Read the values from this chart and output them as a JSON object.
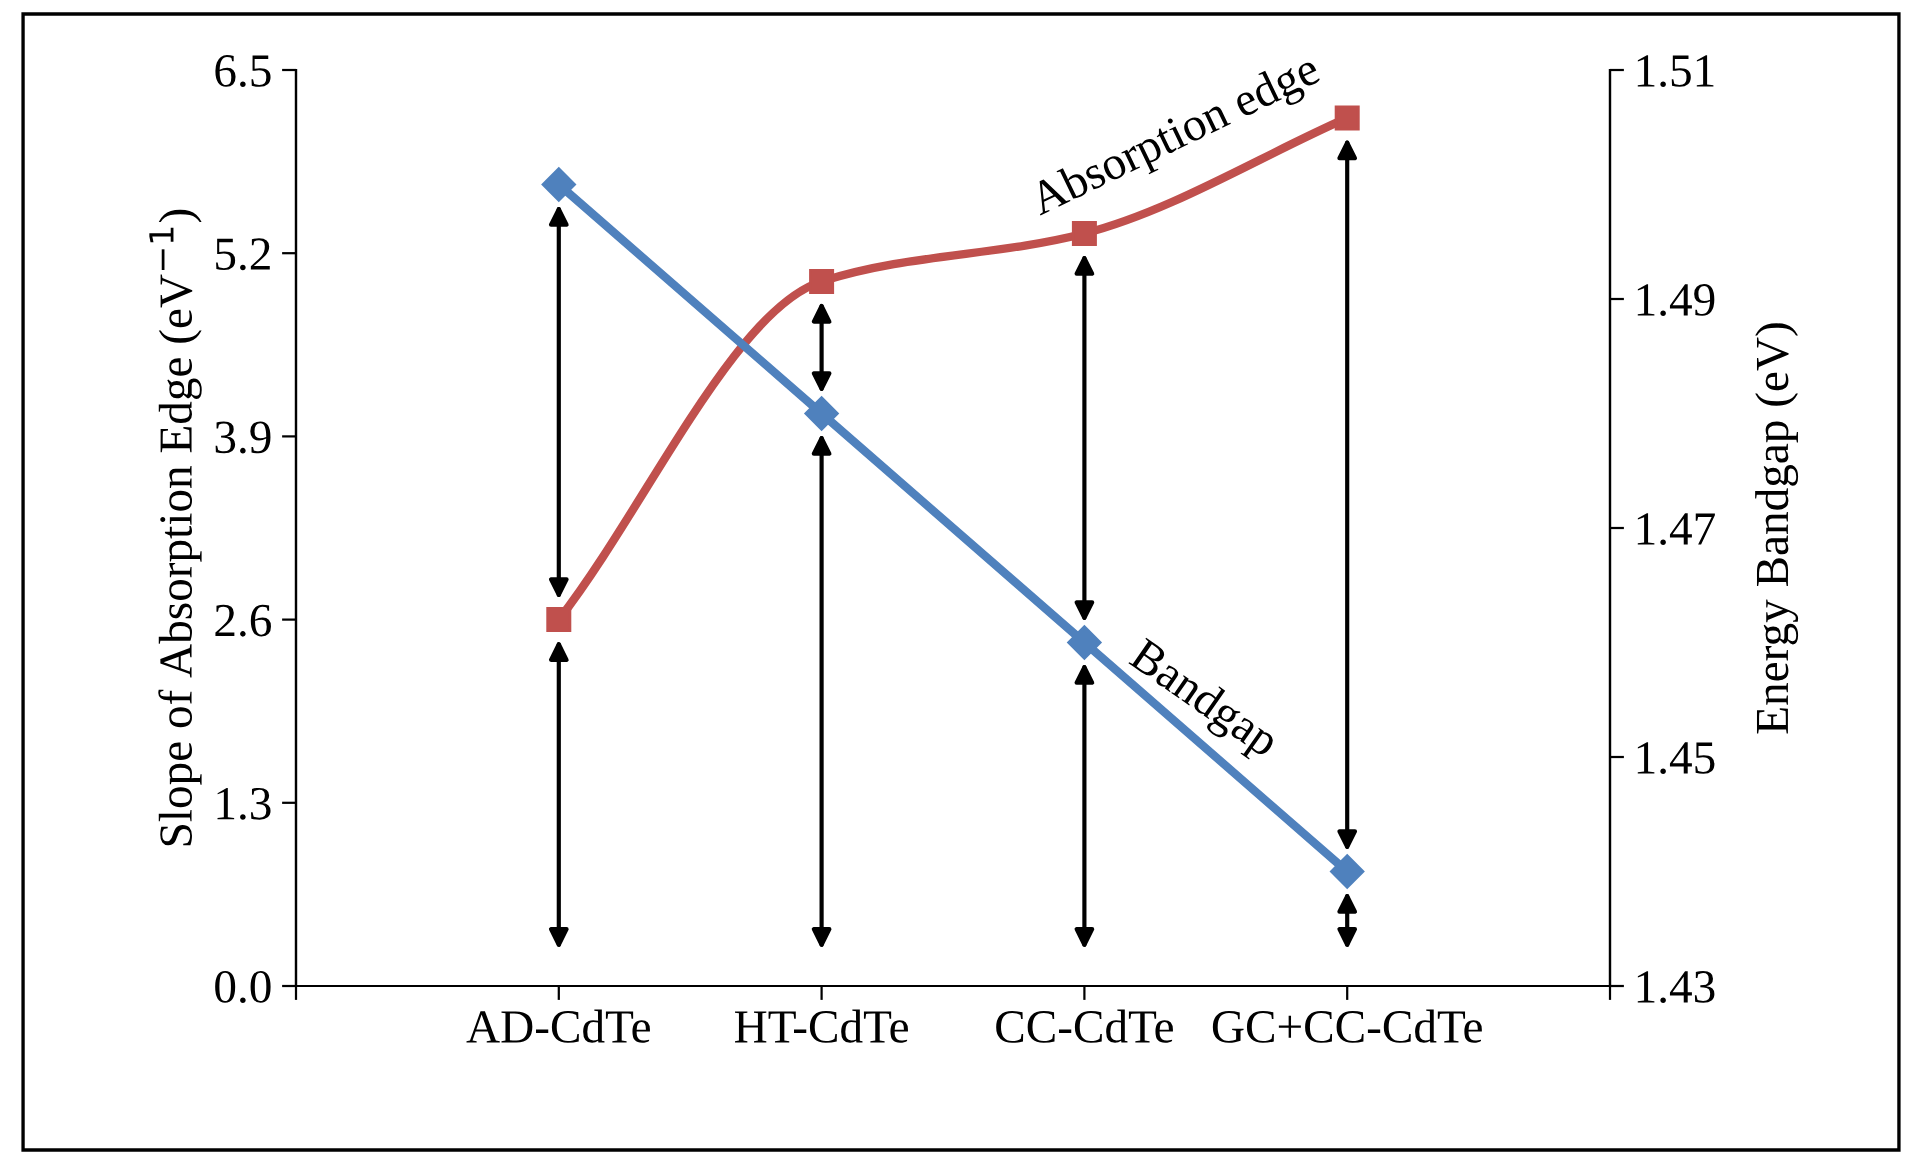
{
  "chart_data": {
    "type": "line",
    "categories": [
      null,
      "AD-CdTe",
      "HT-CdTe",
      "CC-CdTe",
      "GC+CC-CdTe",
      null
    ],
    "ylabel": "Slope of Absorption Edge (eV$^{−1}$)",
    "y2label": "Energy Bandgap (eV)",
    "ylim": [
      0,
      6.5
    ],
    "yticks": [
      {
        "value": 0,
        "label": "0.0"
      },
      1.3,
      2.6,
      3.9,
      5.2,
      6.5
    ],
    "y2lim": [
      1.43,
      1.51
    ],
    "y2ticks": [
      1.43,
      1.45,
      1.47,
      1.49,
      1.51
    ],
    "series": [
      {
        "name": "Absorption edge",
        "color": "#c0504d",
        "marker": "square",
        "values": [
          null,
          2.6,
          5.0,
          5.34,
          6.16,
          null
        ]
      },
      {
        "name": "Bandgap",
        "color": "#4f81bd",
        "marker": "diamond",
        "axis": "y2",
        "values": [
          null,
          1.5,
          1.48,
          1.46,
          1.44,
          null
        ]
      }
    ],
    "grid": false
  }
}
